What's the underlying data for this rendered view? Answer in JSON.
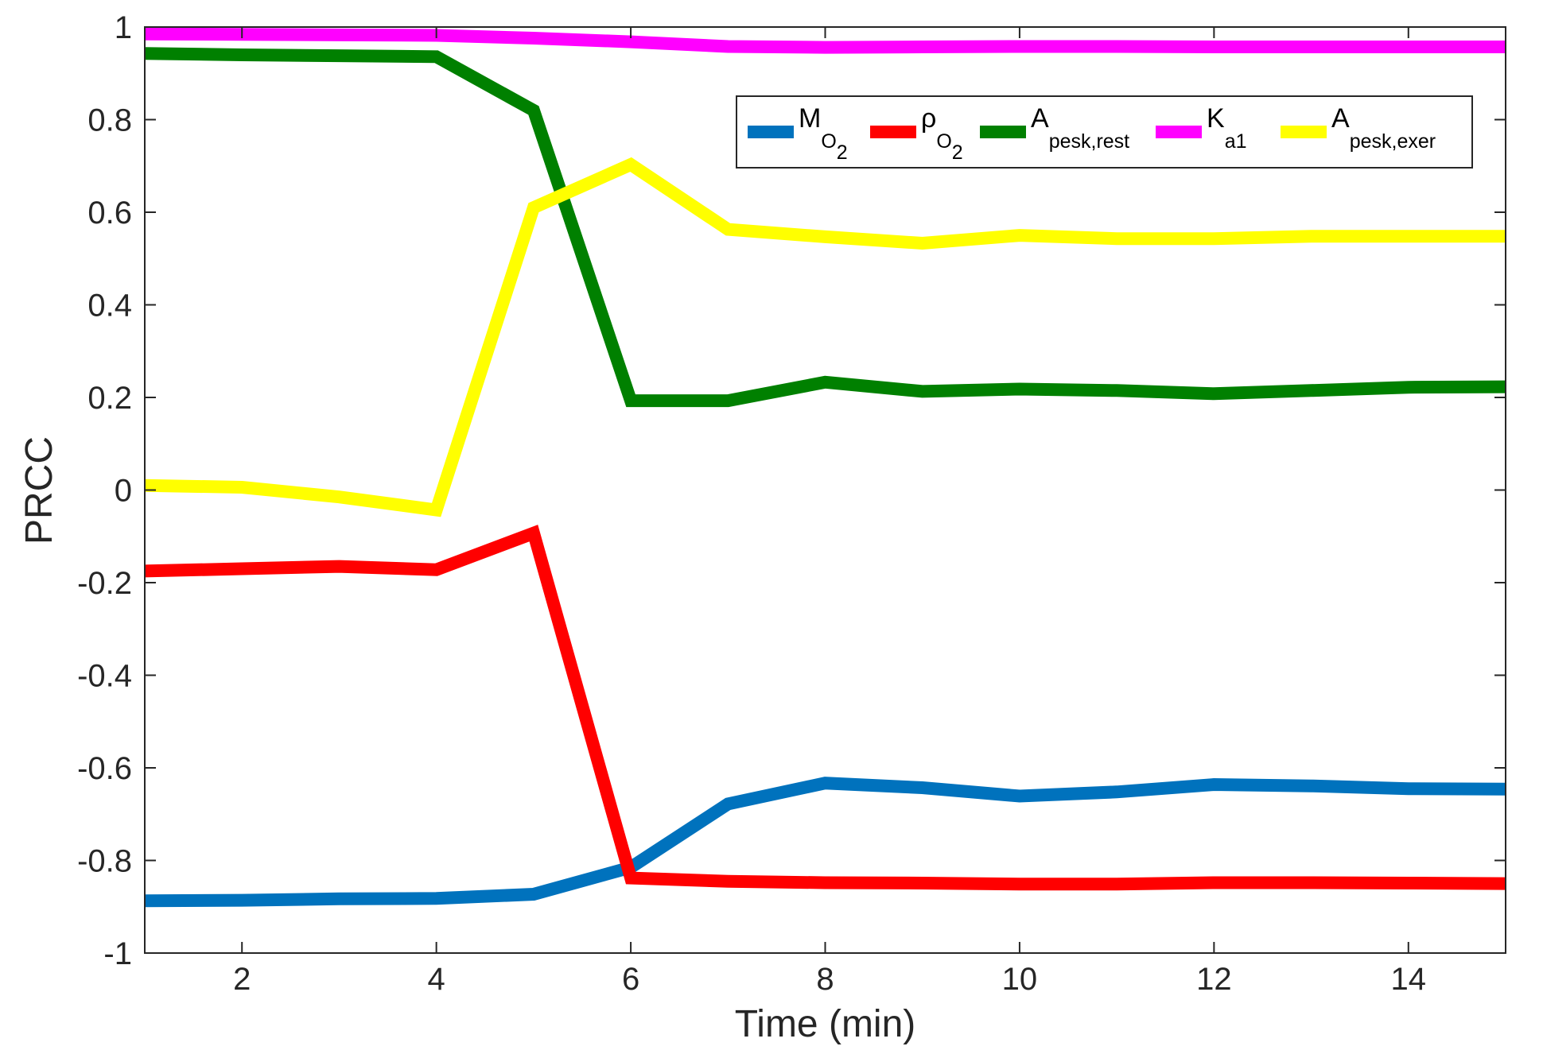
{
  "chart_data": {
    "type": "line",
    "xlabel": "Time (min)",
    "ylabel": "PRCC",
    "xlim": [
      1,
      15
    ],
    "ylim": [
      -1,
      1
    ],
    "xticks": [
      "2",
      "4",
      "6",
      "8",
      "10",
      "12",
      "14"
    ],
    "xtick_values": [
      2,
      4,
      6,
      8,
      10,
      12,
      14
    ],
    "yticks": [
      "-1",
      "-0.8",
      "-0.6",
      "-0.4",
      "-0.2",
      "0",
      "0.2",
      "0.4",
      "0.6",
      "0.8",
      "1"
    ],
    "ytick_values": [
      -1,
      -0.8,
      -0.6,
      -0.4,
      -0.2,
      0,
      0.2,
      0.4,
      0.6,
      0.8,
      1
    ],
    "grid": false,
    "box": true,
    "legend_position": "top-right",
    "x": [
      1,
      2,
      3,
      4,
      5,
      6,
      7,
      8,
      9,
      10,
      11,
      12,
      13,
      14,
      15
    ],
    "series": [
      {
        "id": "m_o2",
        "name": "M_O2",
        "label_main": "M",
        "label_sub": "O",
        "label_subsub": "2",
        "color": "#0072BD",
        "values": [
          -0.887,
          -0.886,
          -0.883,
          -0.882,
          -0.873,
          -0.815,
          -0.678,
          -0.633,
          -0.643,
          -0.661,
          -0.652,
          -0.636,
          -0.639,
          -0.645,
          -0.646
        ]
      },
      {
        "id": "rho_o2",
        "name": "ρ_O2",
        "label_main": "ρ",
        "label_sub": "O",
        "label_subsub": "2",
        "color": "#FF0000",
        "values": [
          -0.175,
          -0.17,
          -0.165,
          -0.172,
          -0.093,
          -0.838,
          -0.845,
          -0.848,
          -0.849,
          -0.851,
          -0.851,
          -0.848,
          -0.848,
          -0.849,
          -0.85
        ]
      },
      {
        "id": "a_pesk_rest",
        "name": "A_pesk,rest",
        "label_main": "A",
        "label_sub": "pesk,rest",
        "label_subsub": "",
        "color": "#008000",
        "values": [
          0.943,
          0.94,
          0.938,
          0.936,
          0.82,
          0.193,
          0.193,
          0.233,
          0.213,
          0.218,
          0.215,
          0.208,
          0.215,
          0.222,
          0.223
        ]
      },
      {
        "id": "k_a1",
        "name": "K_a1",
        "label_main": "K",
        "label_sub": "a1",
        "label_subsub": "",
        "color": "#FF00FF",
        "values": [
          0.985,
          0.984,
          0.983,
          0.982,
          0.976,
          0.968,
          0.958,
          0.956,
          0.957,
          0.958,
          0.958,
          0.957,
          0.957,
          0.957,
          0.957
        ]
      },
      {
        "id": "a_pesk_exer",
        "name": "A_pesk,exer",
        "label_main": "A",
        "label_sub": "pesk,exer",
        "label_subsub": "",
        "color": "#FFFF00",
        "values": [
          0.01,
          0.006,
          -0.015,
          -0.043,
          0.61,
          0.703,
          0.563,
          0.547,
          0.533,
          0.55,
          0.543,
          0.543,
          0.548,
          0.548,
          0.548
        ]
      }
    ]
  }
}
